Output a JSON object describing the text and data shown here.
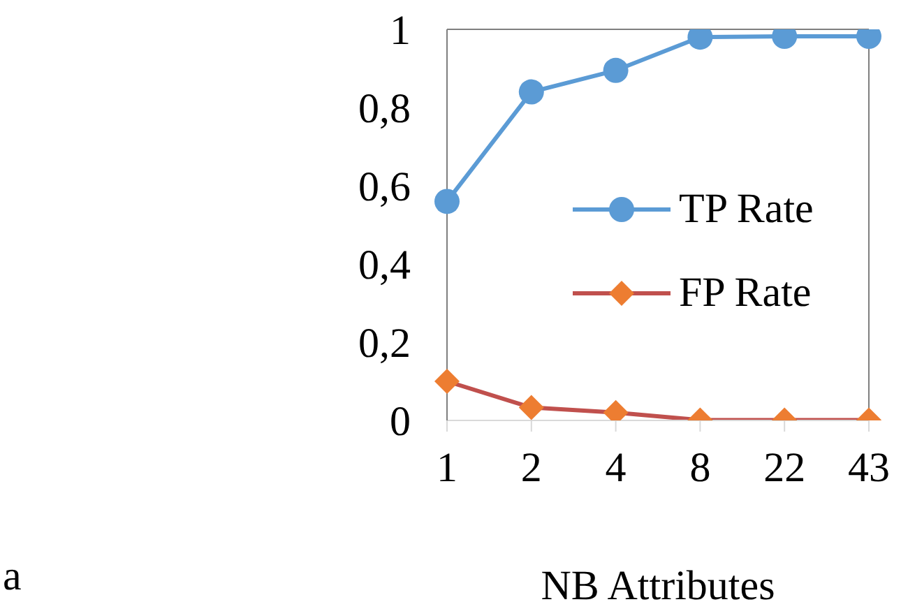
{
  "chart_data": {
    "type": "line",
    "xlabel": "NB Attributes",
    "categories": [
      "1",
      "2",
      "4",
      "8",
      "22",
      "43"
    ],
    "series": [
      {
        "name": "TP Rate",
        "color": "#5b9bd5",
        "marker": "circle",
        "values": [
          0.56,
          0.84,
          0.895,
          0.98,
          0.982,
          0.982
        ]
      },
      {
        "name": "FP Rate",
        "color": "#c0504d",
        "colors": [
          "#ed7d31",
          "#ed7d31",
          "#ed7d31",
          "#ed7d31",
          "#ed7d31",
          "#ed7d31"
        ],
        "marker": "diamond",
        "values": [
          0.1,
          0.033,
          0.02,
          0.001,
          0.001,
          0.001
        ]
      }
    ],
    "ylim": [
      0,
      1
    ],
    "yticks": [
      0,
      {
        "value": 0.2,
        "label": "0,2"
      },
      {
        "value": 0.4,
        "label": "0,4"
      },
      {
        "value": 0.6,
        "label": "0,6"
      },
      {
        "value": 0.8,
        "label": "0,8"
      },
      1
    ],
    "legend": "right",
    "annotations": [
      "a"
    ]
  }
}
